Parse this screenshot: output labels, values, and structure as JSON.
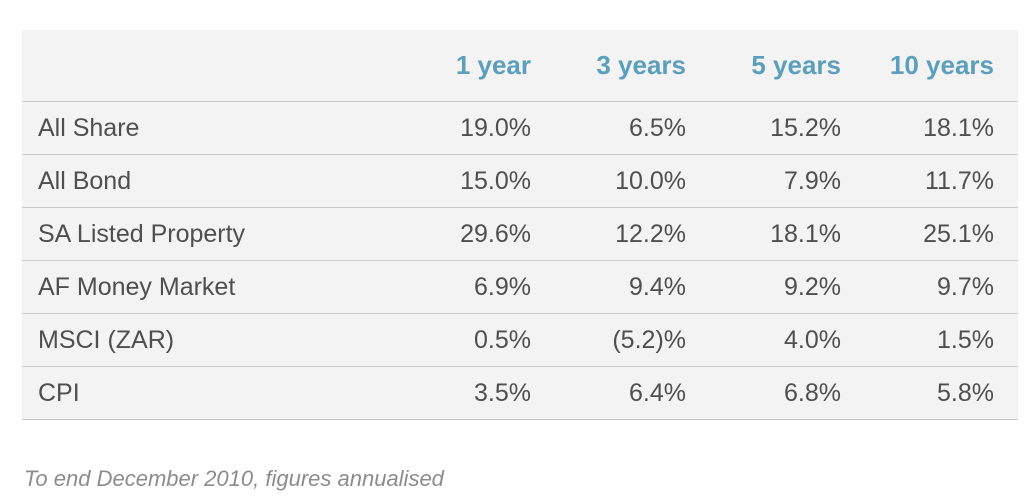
{
  "chart_data": {
    "type": "table",
    "columns": [
      "",
      "1 year",
      "3 years",
      "5 years",
      "10 years"
    ],
    "rows": [
      {
        "label": "All Share",
        "values": [
          "19.0%",
          "6.5%",
          "15.2%",
          "18.1%"
        ]
      },
      {
        "label": "All Bond",
        "values": [
          "15.0%",
          "10.0%",
          "7.9%",
          "11.7%"
        ]
      },
      {
        "label": "SA Listed Property",
        "values": [
          "29.6%",
          "12.2%",
          "18.1%",
          "25.1%"
        ]
      },
      {
        "label": "AF Money Market",
        "values": [
          "6.9%",
          "9.4%",
          "9.2%",
          "9.7%"
        ]
      },
      {
        "label": "MSCI (ZAR)",
        "values": [
          "0.5%",
          "(5.2)%",
          "4.0%",
          "1.5%"
        ]
      },
      {
        "label": "CPI",
        "values": [
          "3.5%",
          "6.4%",
          "6.8%",
          "5.8%"
        ]
      }
    ],
    "footnote": "To end December 2010, figures annualised"
  },
  "colors": {
    "header_text": "#5b9fbd",
    "table_background": "#f3f3f3",
    "body_text": "#4f4f4f",
    "footnote_text": "#8c8c8c"
  }
}
